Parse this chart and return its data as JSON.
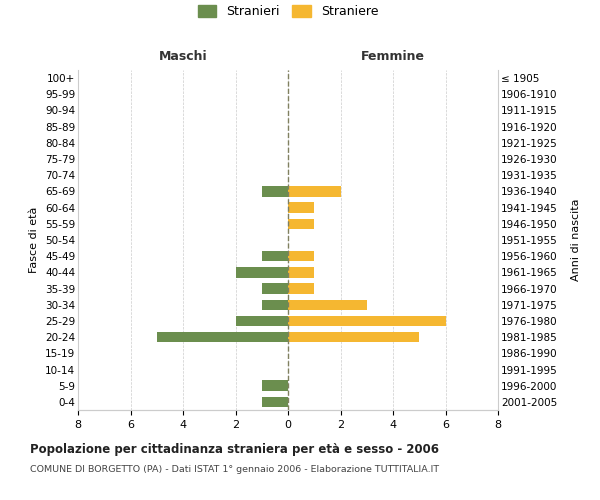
{
  "age_groups": [
    "100+",
    "95-99",
    "90-94",
    "85-89",
    "80-84",
    "75-79",
    "70-74",
    "65-69",
    "60-64",
    "55-59",
    "50-54",
    "45-49",
    "40-44",
    "35-39",
    "30-34",
    "25-29",
    "20-24",
    "15-19",
    "10-14",
    "5-9",
    "0-4"
  ],
  "birth_years": [
    "≤ 1905",
    "1906-1910",
    "1911-1915",
    "1916-1920",
    "1921-1925",
    "1926-1930",
    "1931-1935",
    "1936-1940",
    "1941-1945",
    "1946-1950",
    "1951-1955",
    "1956-1960",
    "1961-1965",
    "1966-1970",
    "1971-1975",
    "1976-1980",
    "1981-1985",
    "1986-1990",
    "1991-1995",
    "1996-2000",
    "2001-2005"
  ],
  "maschi": [
    0,
    0,
    0,
    0,
    0,
    0,
    0,
    1,
    0,
    0,
    0,
    1,
    2,
    1,
    1,
    2,
    5,
    0,
    0,
    1,
    1
  ],
  "femmine": [
    0,
    0,
    0,
    0,
    0,
    0,
    0,
    2,
    1,
    1,
    0,
    1,
    1,
    1,
    3,
    6,
    5,
    0,
    0,
    0,
    0
  ],
  "color_maschi": "#6B8E4E",
  "color_femmine": "#F5B731",
  "title": "Popolazione per cittadinanza straniera per età e sesso - 2006",
  "subtitle": "COMUNE DI BORGETTO (PA) - Dati ISTAT 1° gennaio 2006 - Elaborazione TUTTITALIA.IT",
  "xlabel_left": "Maschi",
  "xlabel_right": "Femmine",
  "ylabel_left": "Fasce di età",
  "ylabel_right": "Anni di nascita",
  "legend_maschi": "Stranieri",
  "legend_femmine": "Straniere",
  "xlim": 8,
  "background_color": "#ffffff",
  "grid_color": "#cccccc"
}
